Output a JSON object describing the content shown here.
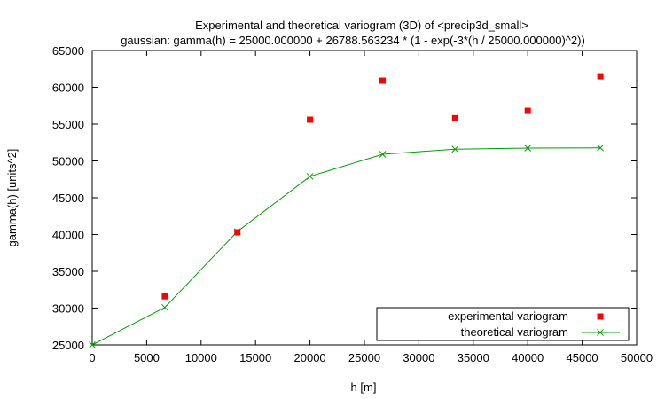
{
  "chart_data": {
    "type": "scatter",
    "title": "Experimental and theoretical variogram (3D) of <precip3d_small>",
    "subtitle": "gaussian: gamma(h) = 25000.000000 + 26788.563234 * (1 - exp(-3*(h / 25000.000000)^2))",
    "xlabel": "h [m]",
    "ylabel": "gamma(h) [units^2]",
    "xlim": [
      0,
      50000
    ],
    "ylim": [
      25000,
      65000
    ],
    "xticks": [
      "0",
      "5000",
      "10000",
      "15000",
      "20000",
      "25000",
      "30000",
      "35000",
      "40000",
      "45000",
      "50000"
    ],
    "yticks": [
      "25000",
      "30000",
      "35000",
      "40000",
      "45000",
      "50000",
      "55000",
      "60000",
      "65000"
    ],
    "grid": false,
    "legend_position": "bottom-right",
    "series": [
      {
        "name": "experimental variogram",
        "style": "points",
        "marker": "square",
        "color": "#ff0000",
        "x": [
          6670,
          13330,
          20000,
          26670,
          33330,
          40000,
          46670
        ],
        "y": [
          31600,
          40300,
          55600,
          60900,
          55800,
          56800,
          61500
        ]
      },
      {
        "name": "theoretical variogram",
        "style": "linespoints",
        "marker": "x",
        "color": "#00a000",
        "x": [
          0,
          6670,
          13330,
          20000,
          26670,
          33330,
          40000,
          46670
        ],
        "y": [
          25000,
          30100,
          40400,
          47900,
          50900,
          51600,
          51750,
          51780
        ]
      }
    ]
  }
}
